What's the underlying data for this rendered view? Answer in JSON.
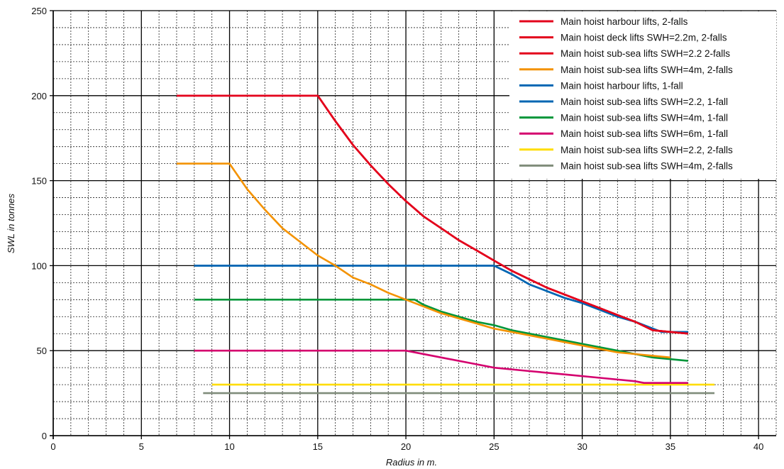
{
  "chart_data": {
    "type": "line",
    "title": "",
    "xlabel": "Radius in m.",
    "ylabel": "SWL in tonnes",
    "xlim": [
      0,
      41
    ],
    "ylim": [
      0,
      250
    ],
    "x_ticks": [
      0,
      5,
      10,
      15,
      20,
      25,
      30,
      35,
      40
    ],
    "y_ticks": [
      0,
      50,
      100,
      150,
      200,
      250
    ],
    "grid": {
      "major": true,
      "minor": true,
      "minor_step_x": 1,
      "minor_step_y": 10
    },
    "legend_position": "top-right",
    "series": [
      {
        "name": "Main hoist  harbour lifts, 2-falls",
        "color": "#e3001b",
        "points": [
          [
            7,
            200
          ],
          [
            15,
            200
          ],
          [
            16,
            185
          ],
          [
            17,
            171
          ],
          [
            18,
            159
          ],
          [
            19,
            148
          ],
          [
            20,
            138
          ],
          [
            21,
            129
          ],
          [
            22,
            122
          ],
          [
            23,
            115
          ],
          [
            24,
            109
          ],
          [
            25,
            103
          ],
          [
            26,
            97
          ],
          [
            27,
            92
          ],
          [
            28,
            87
          ],
          [
            29,
            83
          ],
          [
            30,
            79
          ],
          [
            31,
            75
          ],
          [
            32,
            71
          ],
          [
            33,
            67
          ],
          [
            34,
            62
          ],
          [
            35,
            61
          ],
          [
            36,
            60
          ]
        ]
      },
      {
        "name": "Main hoist deck lifts SWH=2.2m, 2-falls",
        "color": "#e3001b",
        "points": [
          [
            7,
            200
          ],
          [
            15,
            200
          ],
          [
            16,
            185
          ],
          [
            17,
            171
          ],
          [
            18,
            159
          ],
          [
            19,
            148
          ],
          [
            20,
            138
          ],
          [
            21,
            129
          ],
          [
            22,
            122
          ],
          [
            23,
            115
          ],
          [
            24,
            109
          ],
          [
            25,
            103
          ],
          [
            26,
            97
          ],
          [
            27,
            92
          ],
          [
            28,
            87
          ],
          [
            29,
            83
          ],
          [
            30,
            79
          ],
          [
            31,
            75
          ],
          [
            32,
            71
          ],
          [
            33,
            67
          ],
          [
            34,
            62
          ],
          [
            35,
            61
          ],
          [
            36,
            60
          ]
        ]
      },
      {
        "name": "Main hoist sub-sea lifts SWH=2.2 2-falls",
        "color": "#e3001b",
        "points": [
          [
            7,
            200
          ],
          [
            15,
            200
          ],
          [
            16,
            185
          ],
          [
            17,
            171
          ],
          [
            18,
            159
          ],
          [
            19,
            148
          ],
          [
            20,
            138
          ],
          [
            21,
            129
          ],
          [
            22,
            122
          ],
          [
            23,
            115
          ],
          [
            24,
            109
          ],
          [
            25,
            103
          ],
          [
            26,
            97
          ],
          [
            27,
            92
          ],
          [
            28,
            87
          ],
          [
            29,
            83
          ],
          [
            30,
            79
          ],
          [
            31,
            75
          ],
          [
            32,
            71
          ],
          [
            33,
            67
          ],
          [
            34,
            62
          ],
          [
            35,
            61
          ],
          [
            36,
            60
          ]
        ]
      },
      {
        "name": "Main hoist sub-sea lifts SWH=4m, 2-falls",
        "color": "#f39200",
        "points": [
          [
            7,
            160
          ],
          [
            10,
            160
          ],
          [
            11,
            145
          ],
          [
            12,
            133
          ],
          [
            13,
            122
          ],
          [
            14,
            114
          ],
          [
            15,
            106
          ],
          [
            16,
            100
          ],
          [
            17,
            93
          ],
          [
            18,
            89
          ],
          [
            19,
            84
          ],
          [
            20,
            80
          ],
          [
            21,
            76
          ],
          [
            22,
            72
          ],
          [
            23,
            69
          ],
          [
            24,
            66
          ],
          [
            25,
            63
          ],
          [
            26,
            61
          ],
          [
            27,
            59
          ],
          [
            28,
            57
          ],
          [
            29,
            55
          ],
          [
            30,
            53
          ],
          [
            31,
            51
          ],
          [
            32,
            49
          ],
          [
            33,
            48
          ],
          [
            34,
            47
          ],
          [
            35,
            46
          ]
        ]
      },
      {
        "name": "Main hoist harbour lifts, 1-fall",
        "color": "#0066b3",
        "points": [
          [
            8,
            100
          ],
          [
            25,
            100
          ],
          [
            26,
            95
          ],
          [
            27,
            89
          ],
          [
            28,
            85
          ],
          [
            29,
            81
          ],
          [
            30,
            78
          ],
          [
            31,
            74
          ],
          [
            32,
            70
          ],
          [
            33,
            67
          ],
          [
            34,
            63
          ],
          [
            34.5,
            61
          ],
          [
            36,
            61
          ]
        ]
      },
      {
        "name": "Main hoist sub-sea lifts SWH=2.2, 1-fall",
        "color": "#0066b3",
        "points": [
          [
            8,
            100
          ],
          [
            25,
            100
          ],
          [
            26,
            95
          ],
          [
            27,
            89
          ],
          [
            28,
            85
          ],
          [
            29,
            81
          ],
          [
            30,
            78
          ],
          [
            31,
            74
          ],
          [
            32,
            70
          ],
          [
            33,
            67
          ],
          [
            34,
            63
          ],
          [
            34.5,
            61
          ],
          [
            36,
            61
          ]
        ]
      },
      {
        "name": "Main hoist sub-sea lifts SWH=4m, 1-fall",
        "color": "#009639",
        "points": [
          [
            8,
            80
          ],
          [
            20.5,
            80
          ],
          [
            21,
            77
          ],
          [
            22,
            73
          ],
          [
            23,
            70
          ],
          [
            24,
            67
          ],
          [
            25,
            65
          ],
          [
            26,
            62
          ],
          [
            27,
            60
          ],
          [
            28,
            58
          ],
          [
            29,
            56
          ],
          [
            30,
            54
          ],
          [
            31,
            52
          ],
          [
            32,
            50
          ],
          [
            33,
            48
          ],
          [
            34,
            46
          ],
          [
            35,
            45
          ],
          [
            36,
            44
          ]
        ]
      },
      {
        "name": "Main hoist sub-sea lifts SWH=6m, 1-fall",
        "color": "#d4006e",
        "points": [
          [
            8,
            50
          ],
          [
            20,
            50
          ],
          [
            22,
            46
          ],
          [
            24,
            42
          ],
          [
            25,
            40
          ],
          [
            27,
            38
          ],
          [
            29,
            36
          ],
          [
            31,
            34
          ],
          [
            33,
            32
          ],
          [
            33.5,
            31
          ],
          [
            36,
            31
          ]
        ]
      },
      {
        "name": "Main hoist sub-sea lifts SWH=2.2, 2-falls",
        "color": "#ffdd00",
        "points": [
          [
            9,
            30
          ],
          [
            37.5,
            30
          ]
        ]
      },
      {
        "name": "Main hoist sub-sea lifts SWH=4m, 2-falls",
        "color": "#7f8c7a",
        "points": [
          [
            8.5,
            25
          ],
          [
            37.5,
            25
          ]
        ]
      }
    ]
  }
}
